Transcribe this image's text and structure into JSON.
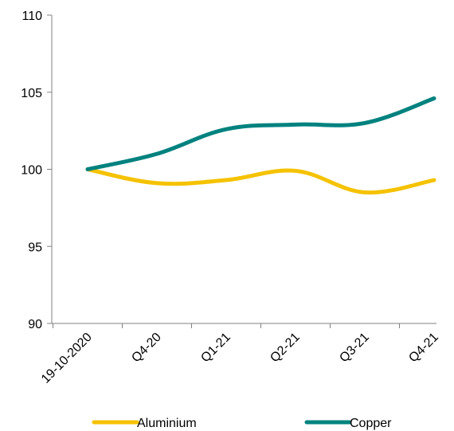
{
  "chart_data": {
    "type": "line",
    "categories": [
      "19-10-2020",
      "Q4-20",
      "Q1-21",
      "Q2-21",
      "Q3-21",
      "Q4-21"
    ],
    "ylim": [
      90,
      110
    ],
    "yticks": [
      90,
      95,
      100,
      105,
      110
    ],
    "legend_position": "bottom",
    "series": [
      {
        "name": "Aluminium",
        "color": "#F5C200",
        "values": [
          100,
          99.1,
          99.3,
          99.9,
          98.5,
          99.3
        ]
      },
      {
        "name": "Copper",
        "color": "#00827F",
        "values": [
          100,
          101.0,
          102.6,
          102.9,
          103.0,
          104.6
        ]
      }
    ]
  }
}
